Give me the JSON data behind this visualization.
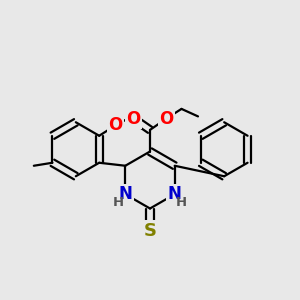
{
  "bg_color": "#e8e8e8",
  "bond_color": "#000000",
  "bond_width": 1.6,
  "atom_colors": {
    "O": "#ff0000",
    "N": "#0000cc",
    "S": "#808000",
    "C": "#000000",
    "H": "#555555"
  },
  "fs": 12,
  "fsh": 9.5
}
